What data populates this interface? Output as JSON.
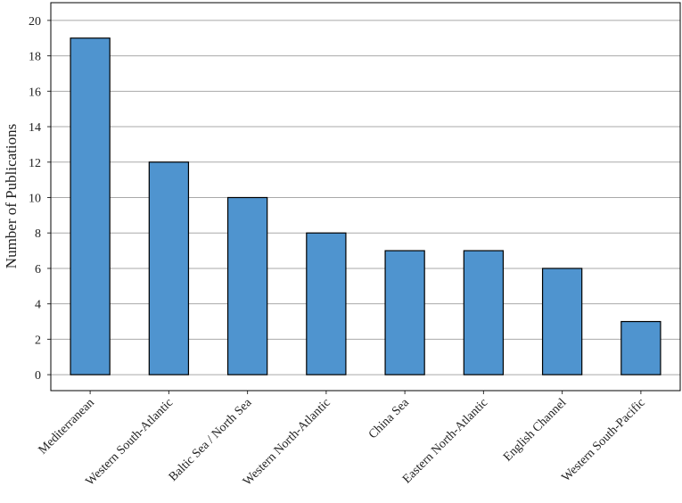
{
  "chart_data": {
    "type": "bar",
    "y_label": "Number of Publications",
    "categories": [
      "Mediterranean",
      "Western South-Atlantic",
      "Baltic Sea / North Sea",
      "Western North-Atlantic",
      "China Sea",
      "Eastern North-Atlantic",
      "English Channel",
      "Western South-Pacific"
    ],
    "values": [
      19,
      12,
      10,
      8,
      7,
      7,
      6,
      3
    ],
    "color": "#4f94cf",
    "ylim": [
      -0.9,
      21
    ],
    "yticks": [
      0,
      2,
      4,
      6,
      8,
      10,
      12,
      14,
      16,
      18,
      20
    ],
    "grid": true
  }
}
